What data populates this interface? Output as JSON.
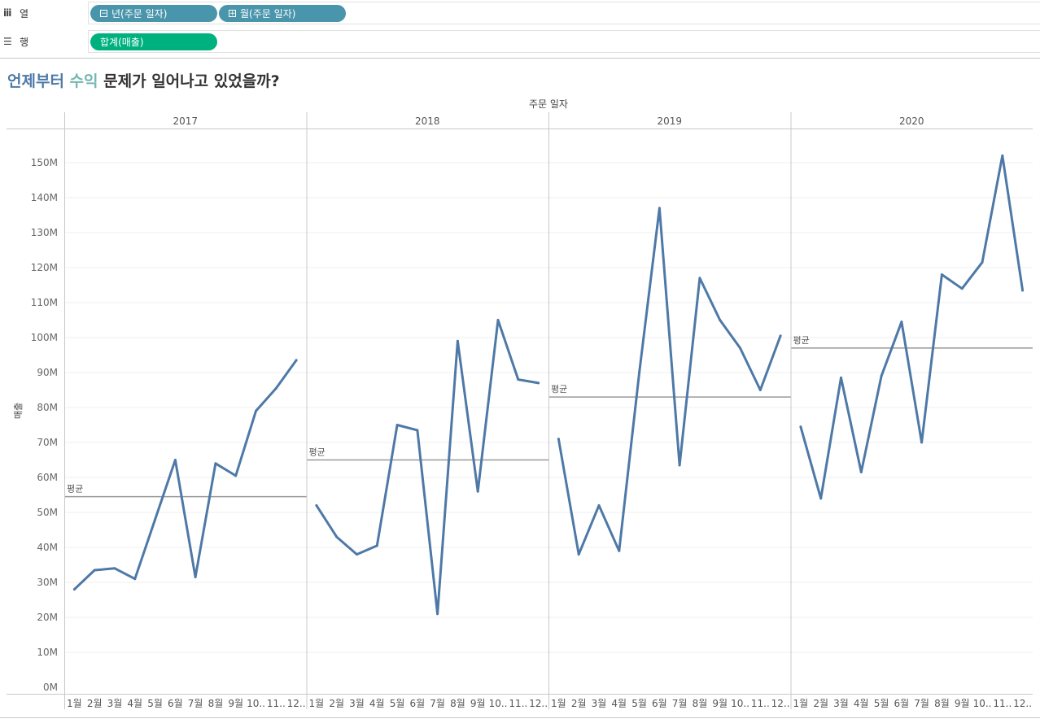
{
  "shelf": {
    "columns": {
      "label": "열",
      "icon": "columns-icon",
      "pills": [
        {
          "label": "년(주문 일자)",
          "prefix": "⊟",
          "color": "#4995ab"
        },
        {
          "label": "월(주문 일자)",
          "prefix": "⊞",
          "color": "#4995ab"
        }
      ]
    },
    "rows": {
      "label": "행",
      "icon": "rows-icon",
      "pills": [
        {
          "label": "합계(매출)",
          "color": "#00b180"
        }
      ]
    }
  },
  "title": {
    "part1": "언제부터",
    "part2": "수익",
    "part3": "문제가 일어나고 있었을까?",
    "color1": "#4e79a7",
    "color2": "#76b7b2",
    "color3": "#333333"
  },
  "chart_data": {
    "type": "line",
    "header": "주문 일자",
    "ylabel": "매출",
    "ylim": [
      0,
      155
    ],
    "yticks": [
      "0M",
      "10M",
      "20M",
      "30M",
      "40M",
      "50M",
      "60M",
      "70M",
      "80M",
      "90M",
      "100M",
      "110M",
      "120M",
      "130M",
      "140M",
      "150M"
    ],
    "yunit": "M",
    "categories": [
      "1월",
      "2월",
      "3월",
      "4월",
      "5월",
      "6월",
      "7월",
      "8월",
      "9월",
      "10..",
      "11..",
      "12.."
    ],
    "reference_label": "평균",
    "line_color": "#4e79a7",
    "reference_color": "#999999",
    "grid": true,
    "panels": [
      {
        "year": "2017",
        "values": [
          28,
          33.5,
          34,
          31,
          48,
          65,
          31.5,
          64,
          60.5,
          79,
          85.5,
          93.5
        ],
        "average": 54.5
      },
      {
        "year": "2018",
        "values": [
          52,
          43,
          38,
          40.5,
          75,
          73.5,
          21,
          99,
          56,
          105,
          88,
          87
        ],
        "average": 65
      },
      {
        "year": "2019",
        "values": [
          71,
          38,
          52,
          39,
          90,
          137,
          63.5,
          117,
          105,
          97,
          85,
          100.5
        ],
        "average": 83
      },
      {
        "year": "2020",
        "values": [
          74.5,
          54,
          88.5,
          61.5,
          89,
          104.5,
          70,
          118,
          114,
          121.5,
          152,
          113.5
        ],
        "average": 97
      }
    ]
  }
}
